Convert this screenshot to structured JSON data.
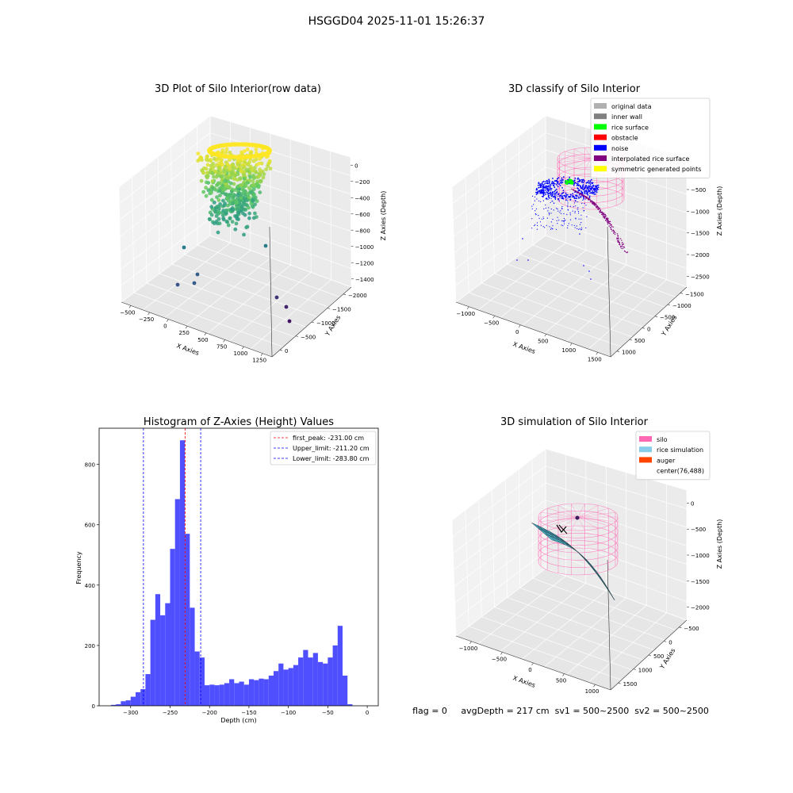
{
  "figure": {
    "suptitle": "HSGGD04 2025-11-01 15:26:37",
    "status_text": "flag = 0     avgDepth = 217 cm  sv1 = 500~2500  sv2 = 500~2500"
  },
  "chart_data": [
    {
      "id": "raw",
      "type": "scatter",
      "projection": "3d",
      "title": "3D Plot of Silo Interior(row data)",
      "xlabel": "X Axies",
      "ylabel": "Y Axies",
      "zlabel": "Z Axies (Depth)",
      "xticks": [
        "−500",
        "−250",
        "0",
        "250",
        "500",
        "750",
        "1000",
        "1250"
      ],
      "yticks": [
        "0",
        "−500",
        "−1000",
        "−1500",
        "−2000"
      ],
      "zticks": [
        "0",
        "−200",
        "−400",
        "−600",
        "−800",
        "−1000",
        "−1200",
        "−1400"
      ],
      "colormap": "viridis",
      "outliers": [
        {
          "x": -250,
          "y": -900,
          "z": -1300
        },
        {
          "x": -150,
          "y": -1050,
          "z": -1400
        },
        {
          "x": 900,
          "y": -1350,
          "z": -1300
        },
        {
          "x": 1000,
          "y": -1600,
          "z": -1450
        }
      ]
    },
    {
      "id": "classify",
      "type": "scatter",
      "projection": "3d",
      "title": "3D classify of Silo Interior",
      "xlabel": "X Axies",
      "ylabel": "Y Axies",
      "zlabel": "Z Axies (Depth)",
      "xticks": [
        "−1000",
        "−500",
        "0",
        "500",
        "1000",
        "1500"
      ],
      "yticks": [
        "1000",
        "500",
        "0",
        "−500",
        "−1000",
        "−1500"
      ],
      "zticks": [
        "0",
        "−500",
        "−1000",
        "−1500",
        "−2000",
        "−2500"
      ],
      "legend": {
        "location": "upper right",
        "entries": [
          {
            "label": "original data",
            "color": "#b0b0b0"
          },
          {
            "label": "inner wall",
            "color": "#808080"
          },
          {
            "label": "rice surface",
            "color": "#00ff00"
          },
          {
            "label": "obstacle",
            "color": "#ff0000"
          },
          {
            "label": "noise",
            "color": "#0000ff"
          },
          {
            "label": "interpolated rice surface",
            "color": "#800080"
          },
          {
            "label": "symmetric generated points",
            "color": "#ffff00"
          }
        ]
      }
    },
    {
      "id": "hist",
      "type": "bar",
      "title": "Histogram of Z-Axies (Height) Values",
      "xlabel": "Depth (cm)",
      "ylabel": "Frequency",
      "xlim": [
        -340,
        14
      ],
      "ylim": [
        0,
        920
      ],
      "xticks": [
        -300,
        -250,
        -200,
        -150,
        -100,
        -50,
        0
      ],
      "yticks": [
        0,
        200,
        400,
        600,
        800
      ],
      "bin_start": -325,
      "bin_width": 6.25,
      "counts": [
        3,
        5,
        15,
        18,
        30,
        45,
        55,
        105,
        285,
        370,
        300,
        340,
        520,
        685,
        880,
        570,
        325,
        180,
        160,
        68,
        70,
        68,
        70,
        75,
        88,
        75,
        80,
        70,
        88,
        85,
        90,
        88,
        100,
        115,
        140,
        120,
        125,
        135,
        160,
        185,
        160,
        175,
        145,
        140,
        160,
        200,
        265,
        100,
        5
      ],
      "bar_color": "#4f4fff",
      "lines": [
        {
          "label": "first_peak: -231.00 cm",
          "value": -231.0,
          "color": "#ff0000"
        },
        {
          "label": "Upper_limit: -211.20 cm",
          "value": -211.2,
          "color": "#0000ff"
        },
        {
          "label": "Lower_limit: -283.80 cm",
          "value": -283.8,
          "color": "#0000ff"
        }
      ],
      "legend": {
        "location": "upper right"
      }
    },
    {
      "id": "sim",
      "type": "surface",
      "projection": "3d",
      "title": "3D simulation of Silo Interior",
      "xlabel": "X Axies",
      "ylabel": "Y Axies",
      "zlabel": "Z Axies (Depth)",
      "xticks": [
        "−1000",
        "−500",
        "0",
        "500",
        "1000"
      ],
      "yticks": [
        "1500",
        "1000",
        "500",
        "0",
        "−500"
      ],
      "zticks": [
        "0",
        "−500",
        "−1000",
        "−1500",
        "−2000"
      ],
      "legend": {
        "location": "upper right",
        "entries": [
          {
            "label": "silo",
            "color": "#ff69b4"
          },
          {
            "label": "rice simulation",
            "color": "#87ceeb"
          },
          {
            "label": "auger",
            "color": "#ff4500"
          },
          {
            "label": "center(76,488)",
            "color": ""
          }
        ]
      }
    }
  ]
}
